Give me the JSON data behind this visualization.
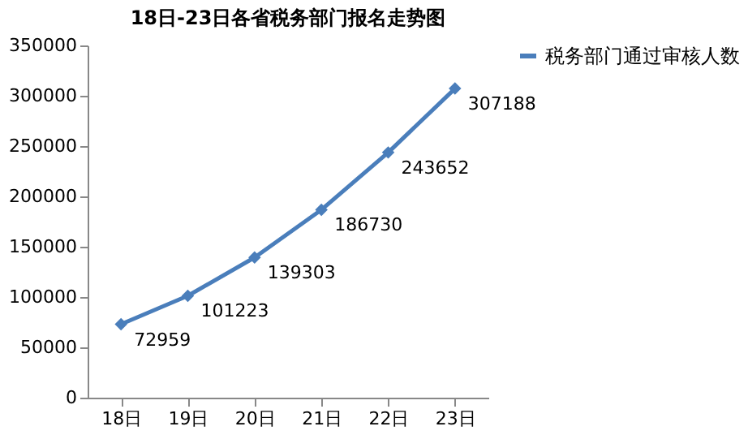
{
  "chart_data": {
    "type": "line",
    "title": "18日-23日各省税务部门报名走势图",
    "categories": [
      "18日",
      "19日",
      "20日",
      "21日",
      "22日",
      "23日"
    ],
    "series": [
      {
        "name": "税务部门通过审核人数",
        "color": "#4a7ebb",
        "values": [
          72959,
          101223,
          139303,
          186730,
          243652,
          307188
        ]
      }
    ],
    "ylim": [
      0,
      350000
    ],
    "yticks": [
      0,
      50000,
      100000,
      150000,
      200000,
      250000,
      300000,
      350000
    ],
    "grid": false,
    "legend": "right",
    "marker": "diamond",
    "line_style": "solid",
    "data_labels": true
  }
}
